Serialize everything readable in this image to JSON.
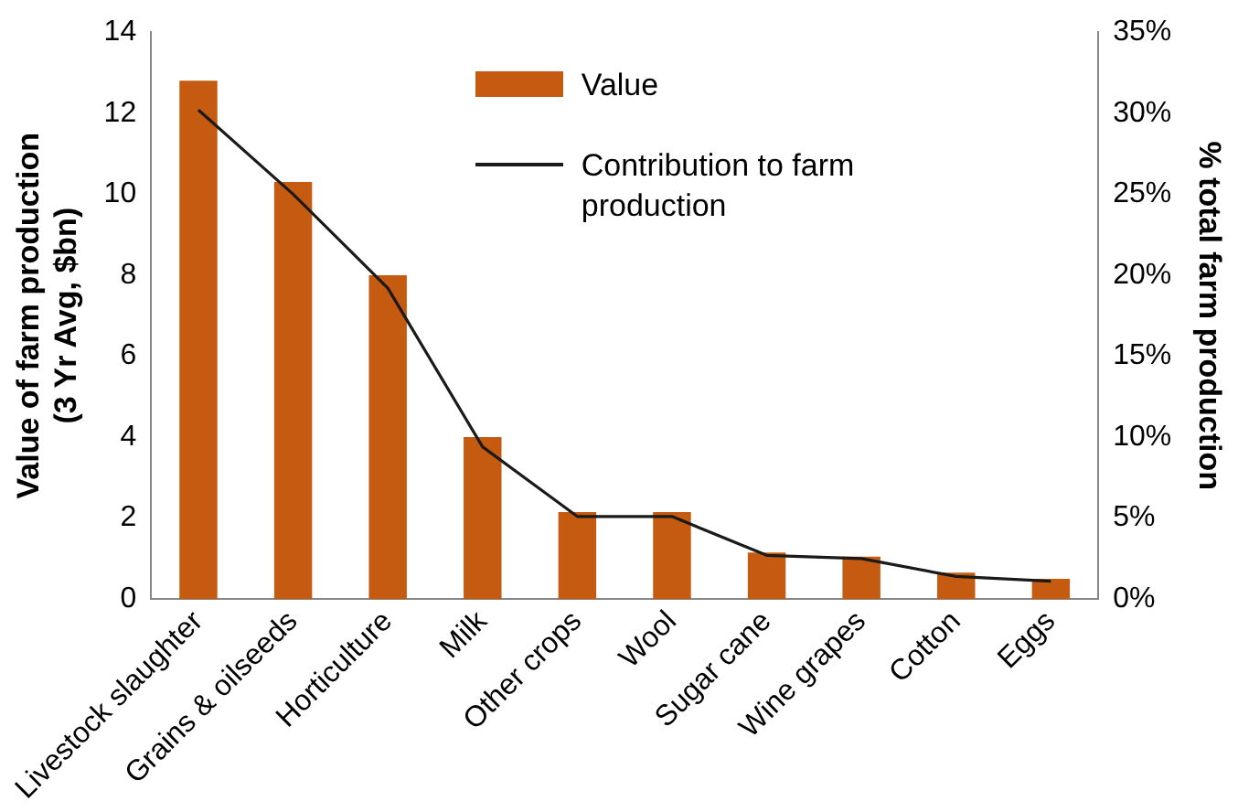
{
  "chart_data": {
    "type": "bar",
    "categories": [
      "Livestock slaughter",
      "Grains & oilseeds",
      "Horticulture",
      "Milk",
      "Other crops",
      "Wool",
      "Sugar cane",
      "Wine grapes",
      "Cotton",
      "Eggs"
    ],
    "ylabel": "Value of farm production\n(3 Yr Avg, $bn)",
    "y2label": "% total farm production",
    "series": [
      {
        "name": "Value",
        "color": "#c55a11",
        "values": [
          12.8,
          10.3,
          8.0,
          4.0,
          2.15,
          2.15,
          1.15,
          1.05,
          0.65,
          0.5
        ]
      },
      {
        "name": "Contribution to farm production",
        "type": "line",
        "axis": "y2",
        "color": "#1a1a1a",
        "values": [
          30.2,
          25.0,
          19.2,
          9.4,
          5.1,
          5.1,
          2.7,
          2.5,
          1.4,
          1.1
        ]
      }
    ],
    "ylim": [
      0,
      14
    ],
    "yticks": [
      0,
      2,
      4,
      6,
      8,
      10,
      12,
      14
    ],
    "y2lim": [
      0,
      35
    ],
    "y2ticks": [
      {
        "value": 0,
        "label": "0%"
      },
      {
        "value": 5,
        "label": "5%"
      },
      {
        "value": 10,
        "label": "10%"
      },
      {
        "value": 15,
        "label": "15%"
      },
      {
        "value": 20,
        "label": "20%"
      },
      {
        "value": 25,
        "label": "25%"
      },
      {
        "value": 30,
        "label": "30%"
      },
      {
        "value": 35,
        "label": "35%"
      }
    ],
    "legend": "top",
    "marker": "none",
    "line_style": "solid",
    "grid": false
  }
}
